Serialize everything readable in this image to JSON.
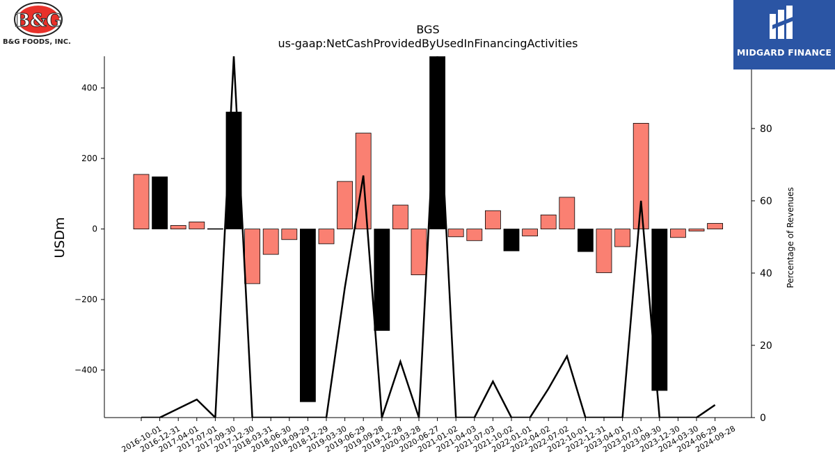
{
  "logos": {
    "left_brand": "B&G FOODS, INC.",
    "left_mark": "B&G",
    "right_brand": "MIDGARD FINANCE"
  },
  "colors": {
    "positive_bar": "#fa8072",
    "negative_bar": "#000000",
    "line": "#000000",
    "brand_blue": "#2b55a4",
    "bg_red": "#e8312a"
  },
  "chart_data": {
    "type": "bar",
    "title": "BGS",
    "subtitle": "us-gaap:NetCashProvidedByUsedInFinancingActivities",
    "ylabel": "USDm",
    "y2label": "Percentage of Revenues",
    "ylim": [
      -535,
      490
    ],
    "y2lim": [
      0,
      100
    ],
    "yticks": [
      -400,
      -200,
      0,
      200,
      400
    ],
    "y2ticks": [
      0,
      20,
      40,
      60,
      80
    ],
    "grid": false,
    "categories": [
      "2016-10-01",
      "2016-12-31",
      "2017-04-01",
      "2017-07-01",
      "2017-09-30",
      "2017-12-30",
      "2018-03-31",
      "2018-06-30",
      "2018-09-29",
      "2018-12-29",
      "2019-03-30",
      "2019-06-29",
      "2019-09-28",
      "2019-12-28",
      "2020-03-28",
      "2020-06-27",
      "2021-01-02",
      "2021-04-03",
      "2021-07-03",
      "2021-10-02",
      "2022-01-01",
      "2022-04-02",
      "2022-07-02",
      "2022-10-01",
      "2022-12-31",
      "2023-04-01",
      "2023-07-01",
      "2023-09-30",
      "2023-12-30",
      "2024-03-30",
      "2024-06-29",
      "2024-09-28"
    ],
    "series": [
      {
        "type": "bar",
        "axis": "left",
        "values": [
          155,
          148,
          10,
          20,
          1,
          332,
          -155,
          -72,
          -30,
          -490,
          -42,
          135,
          272,
          -288,
          68,
          -130,
          489,
          -22,
          -33,
          52,
          -62,
          -20,
          40,
          90,
          -64,
          -124,
          -50,
          300,
          -458,
          -24,
          -6,
          16
        ],
        "highlight": [
          false,
          true,
          false,
          false,
          false,
          true,
          false,
          false,
          false,
          true,
          false,
          false,
          false,
          true,
          false,
          false,
          true,
          false,
          false,
          false,
          true,
          false,
          false,
          false,
          true,
          false,
          false,
          false,
          true,
          false,
          false,
          false
        ]
      },
      {
        "type": "line",
        "axis": "right",
        "values": [
          0,
          0,
          2.5,
          5,
          0,
          100,
          0,
          0,
          0,
          0,
          0,
          36,
          67,
          0,
          15.5,
          0,
          100,
          0,
          0,
          10,
          0,
          0,
          8,
          17,
          0,
          0,
          0,
          60,
          0,
          0,
          0,
          3.5
        ]
      }
    ]
  }
}
